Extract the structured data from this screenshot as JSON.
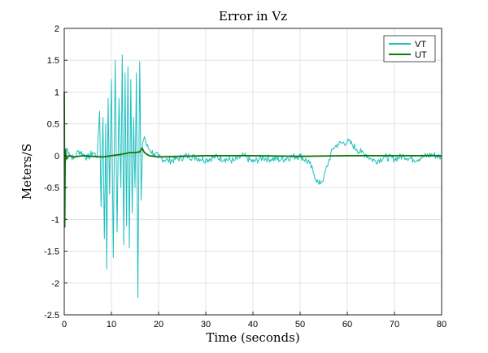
{
  "chart_data": {
    "type": "line",
    "title": "Error in Vz",
    "xlabel": "Time (seconds)",
    "ylabel": "Meters/S",
    "xlim": [
      0,
      80
    ],
    "ylim": [
      -2.5,
      2
    ],
    "grid": true,
    "legend_position": "top-right",
    "xticks": [
      "0",
      "10",
      "20",
      "30",
      "40",
      "50",
      "60",
      "70",
      "80"
    ],
    "yticks": [
      "2",
      "1.5",
      "1",
      "0.5",
      "0",
      "-0.5",
      "-1",
      "-1.5",
      "-2",
      "-2.5"
    ],
    "series": [
      {
        "name": "VT",
        "color": "#1fbfbf",
        "x": [
          0,
          0.3,
          0.5,
          1,
          2,
          3,
          4,
          5,
          6,
          7,
          7.5,
          7.8,
          8.2,
          8.5,
          8.8,
          9,
          9.3,
          9.6,
          10,
          10.4,
          10.8,
          11.2,
          11.6,
          12,
          12.3,
          12.6,
          12.9,
          13.2,
          13.5,
          13.8,
          14.1,
          14.4,
          14.7,
          15,
          15.3,
          15.6,
          16,
          16.3,
          16.6,
          17,
          17.5,
          18,
          19,
          20,
          22,
          24,
          26,
          28,
          30,
          32,
          34,
          36,
          38,
          40,
          42,
          44,
          46,
          48,
          50,
          52,
          53,
          54,
          55,
          56,
          57,
          58,
          59,
          60,
          61,
          62,
          63,
          64,
          65,
          66,
          68,
          70,
          72,
          74,
          76,
          78,
          80
        ],
        "y": [
          0,
          -0.1,
          0.12,
          0.05,
          -0.05,
          0.08,
          0.03,
          -0.04,
          0.05,
          0.0,
          0.7,
          -0.8,
          0.6,
          -1.3,
          0.5,
          -1.78,
          0.9,
          -0.6,
          1.2,
          -1.6,
          1.5,
          -1.2,
          0.9,
          -0.5,
          1.58,
          -1.4,
          1.3,
          -1.1,
          1.4,
          -1.45,
          1.2,
          -0.9,
          0.6,
          -0.5,
          1.3,
          -2.23,
          1.48,
          -0.7,
          0.2,
          0.3,
          0.15,
          0.1,
          0.03,
          -0.02,
          -0.08,
          -0.05,
          0.0,
          -0.03,
          -0.06,
          -0.02,
          -0.05,
          -0.08,
          0.0,
          -0.1,
          -0.03,
          -0.05,
          -0.06,
          -0.02,
          0.0,
          -0.12,
          -0.3,
          -0.45,
          -0.35,
          -0.1,
          0.12,
          0.18,
          0.2,
          0.22,
          0.18,
          0.1,
          0.05,
          0.02,
          -0.05,
          -0.08,
          -0.02,
          -0.05,
          0.0,
          -0.06,
          -0.02,
          0.02,
          -0.03
        ]
      },
      {
        "name": "UT",
        "color": "#0a7a0a",
        "x": [
          0,
          0.1,
          0.2,
          0.3,
          0.5,
          1,
          2,
          4,
          6,
          8,
          10,
          12,
          14,
          15,
          16,
          16.5,
          17,
          18,
          20,
          25,
          30,
          40,
          50,
          60,
          70,
          80
        ],
        "y": [
          1.0,
          -1.12,
          0.1,
          0.0,
          -0.05,
          0.0,
          -0.02,
          0.0,
          -0.01,
          -0.02,
          0.0,
          0.02,
          0.05,
          0.05,
          0.06,
          0.12,
          0.05,
          0.0,
          -0.02,
          -0.01,
          0.0,
          0.0,
          -0.01,
          0.0,
          0.0,
          0.0
        ]
      }
    ]
  }
}
